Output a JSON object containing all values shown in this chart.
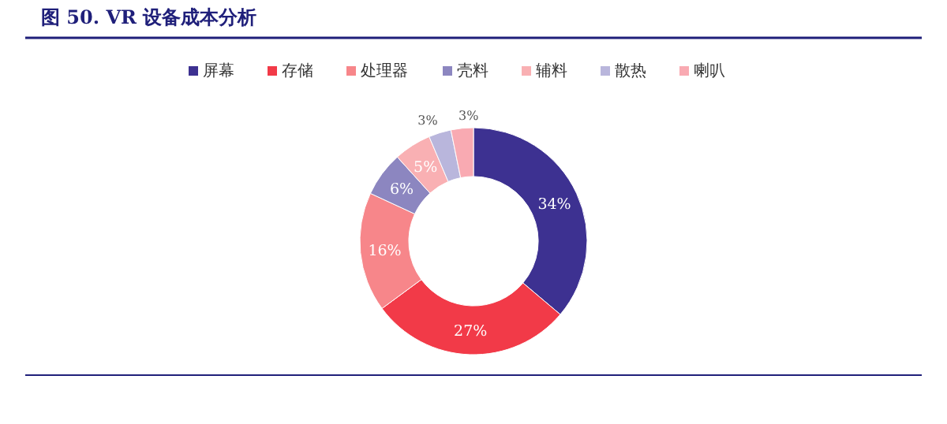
{
  "chart_data": {
    "type": "donut",
    "title": "图 50. VR 设备成本分析",
    "legend": "top",
    "categories": [
      "屏幕",
      "存储",
      "处理器",
      "壳料",
      "辅料",
      "散热",
      "喇叭"
    ],
    "values": [
      34,
      27,
      16,
      6,
      5,
      3,
      3
    ],
    "colors": [
      "#3d3191",
      "#f23a48",
      "#f7868a",
      "#8c86c0",
      "#f9b0b3",
      "#b9b6dc",
      "#f9aab2"
    ],
    "value_labels": [
      "34%",
      "27%",
      "16%",
      "6%",
      "5%",
      "3%",
      "3%"
    ]
  }
}
